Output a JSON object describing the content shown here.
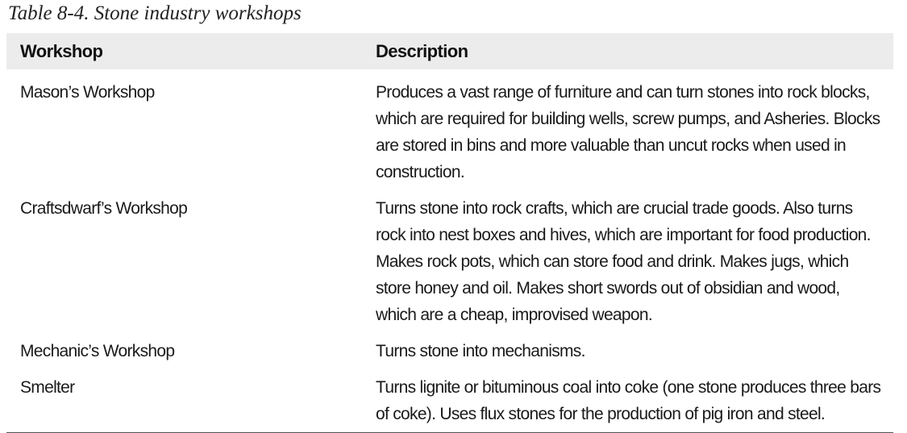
{
  "caption": "Table 8-4. Stone industry workshops",
  "table": {
    "headers": {
      "workshop": "Workshop",
      "description": "Description"
    },
    "rows": [
      {
        "workshop": "Mason’s Workshop",
        "description": "Produces a vast range of furniture and can turn stones into rock blocks, which are required for building wells, screw pumps, and Asheries. Blocks are stored in bins and more valuable than uncut rocks when used in construction."
      },
      {
        "workshop": "Craftsdwarf’s Workshop",
        "description": "Turns stone into rock crafts, which are crucial trade goods. Also turns rock into nest boxes and hives, which are important for food production. Makes rock pots, which can store food and drink. Makes jugs, which store honey and oil. Makes short swords out of obsidian and wood, which are a cheap, improvised weapon."
      },
      {
        "workshop": "Mechanic’s Workshop",
        "description": "Turns stone into mechanisms."
      },
      {
        "workshop": "Smelter",
        "description": "Turns lignite or bituminous coal into coke (one stone produces three bars of coke). Uses flux stones for the production of pig iron and steel."
      }
    ]
  }
}
